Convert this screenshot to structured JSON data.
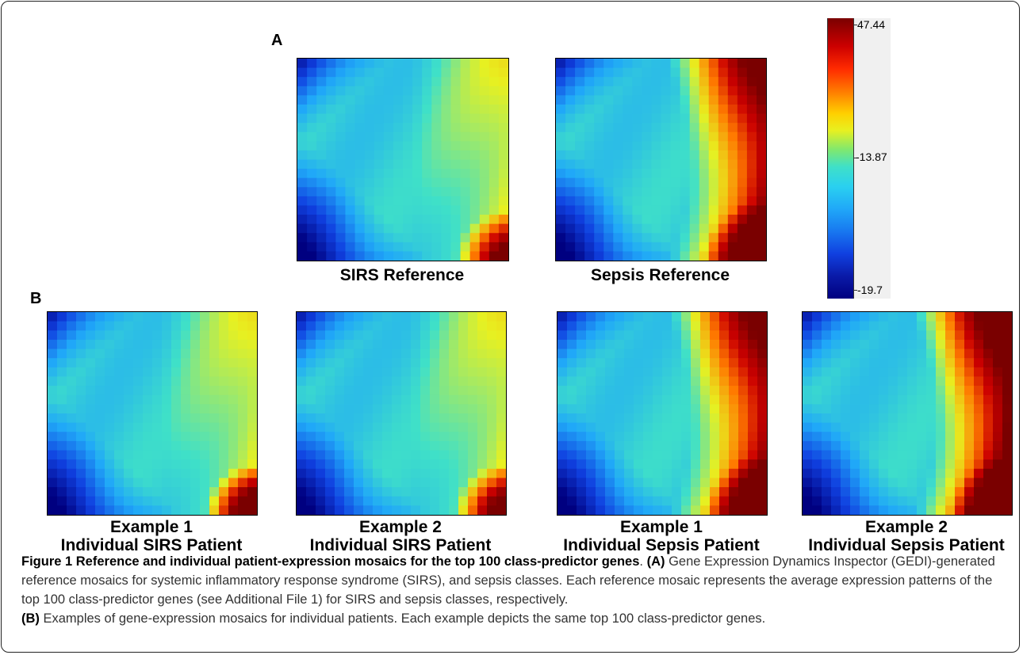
{
  "panels": {
    "a": "A",
    "b": "B"
  },
  "mosaics": [
    {
      "id": "sirs-ref",
      "caption": [
        "SIRS Reference"
      ],
      "kind": "sirs",
      "hot": 0.0
    },
    {
      "id": "sepsis-ref",
      "caption": [
        "Sepsis Reference"
      ],
      "kind": "sepsis",
      "hot": 1.0
    },
    {
      "id": "sirs-ex1",
      "caption": [
        "Example 1",
        "Individual SIRS Patient"
      ],
      "kind": "sirs",
      "hot": 0.2
    },
    {
      "id": "sirs-ex2",
      "caption": [
        "Example 2",
        "Individual SIRS Patient"
      ],
      "kind": "sirs",
      "hot": 0.05
    },
    {
      "id": "sepsis-ex1",
      "caption": [
        "Example 1",
        "Individual Sepsis Patient"
      ],
      "kind": "sepsis",
      "hot": 1.0
    },
    {
      "id": "sepsis-ex2",
      "caption": [
        "Example 2",
        "Individual Sepsis Patient"
      ],
      "kind": "sepsis",
      "hot": 1.2
    }
  ],
  "colorbar": {
    "max_label": "47.44",
    "mid_label": "-13.87",
    "min_label": "-19.7",
    "colors": [
      "#000080",
      "#1040e0",
      "#20a8f8",
      "#3fe0c8",
      "#e8f020",
      "#ff7a00",
      "#cc0000",
      "#7a0000"
    ]
  },
  "caption": {
    "title": "Figure 1 Reference and individual patient-expression mosaics for the top 100 class-predictor genes",
    "title_end": ". ",
    "a_label": "(A)",
    "a_text": " Gene Expression Dynamics Inspector (GEDI)-generated reference mosaics for systemic inflammatory response syndrome (SIRS), and sepsis classes. Each reference mosaic represents the average expression patterns of the top 100 class-predictor genes (see Additional File 1) for SIRS and sepsis classes, respectively.",
    "b_label": "(B)",
    "b_text": " Examples of gene-expression mosaics for individual patients. Each example depicts the same top 100 class-predictor genes."
  }
}
